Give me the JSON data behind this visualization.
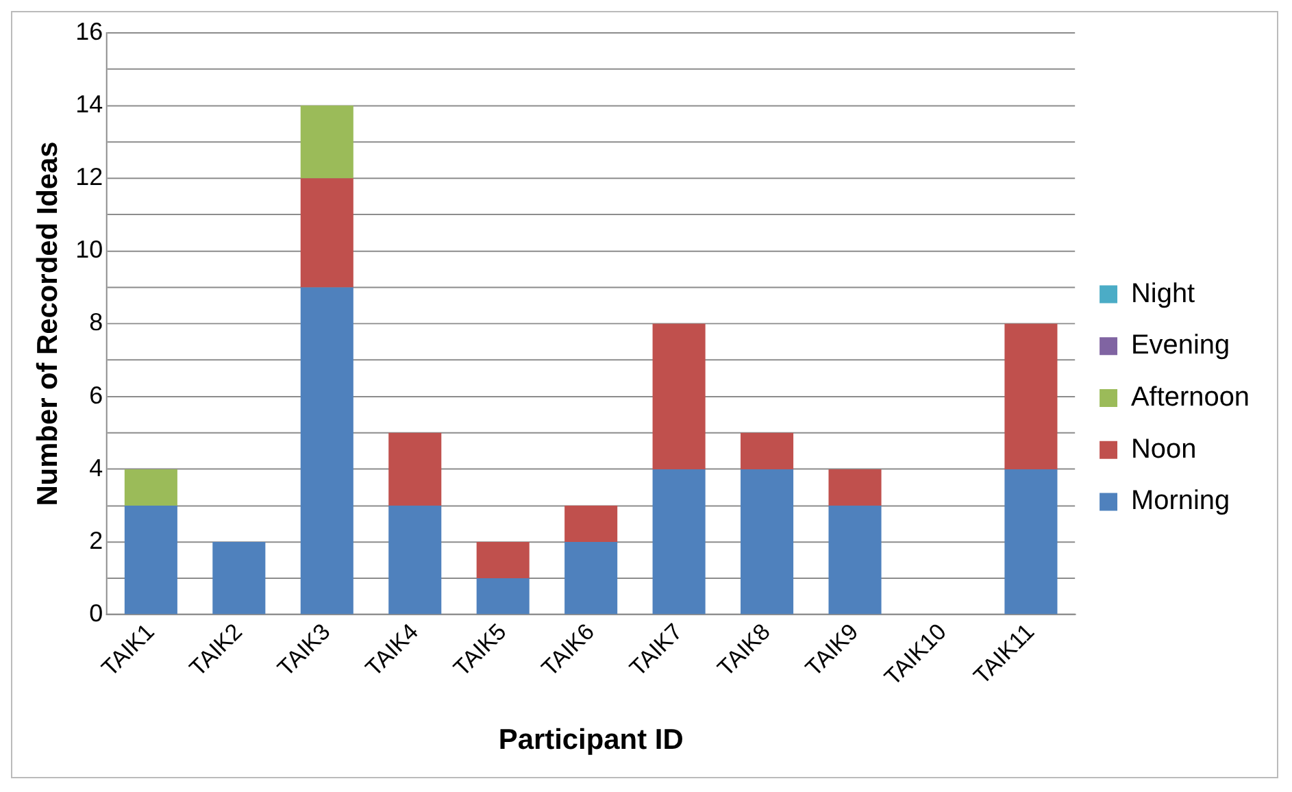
{
  "chart_data": {
    "type": "bar",
    "stacked": true,
    "xlabel": "Participant ID",
    "ylabel": "Number of Recorded Ideas",
    "categories": [
      "TAIK1",
      "TAIK2",
      "TAIK3",
      "TAIK4",
      "TAIK5",
      "TAIK6",
      "TAIK7",
      "TAIK8",
      "TAIK9",
      "TAIK10",
      "TAIK11"
    ],
    "series": [
      {
        "name": "Morning",
        "color": "#4f81bd",
        "values": [
          3,
          2,
          9,
          3,
          1,
          2,
          4,
          4,
          3,
          0,
          4
        ]
      },
      {
        "name": "Noon",
        "color": "#c0504d",
        "values": [
          0,
          0,
          3,
          2,
          1,
          1,
          4,
          1,
          1,
          0,
          4
        ]
      },
      {
        "name": "Afternoon",
        "color": "#9bbb59",
        "values": [
          1,
          0,
          2,
          0,
          0,
          0,
          0,
          0,
          0,
          0,
          0
        ]
      },
      {
        "name": "Evening",
        "color": "#8064a2",
        "values": [
          0,
          0,
          0,
          0,
          0,
          0,
          0,
          0,
          0,
          0,
          0
        ]
      },
      {
        "name": "Night",
        "color": "#4bacc6",
        "values": [
          0,
          0,
          0,
          0,
          0,
          0,
          0,
          0,
          0,
          0,
          0
        ]
      }
    ],
    "ylim": [
      0,
      16
    ],
    "yticks": [
      0,
      {
        "value": 1,
        "label": null
      },
      2,
      {
        "value": 3,
        "label": null
      },
      4,
      {
        "value": 5,
        "label": null
      },
      6,
      {
        "value": 7,
        "label": null
      },
      8,
      {
        "value": 9,
        "label": null
      },
      10,
      {
        "value": 11,
        "label": null
      },
      12,
      {
        "value": 13,
        "label": null
      },
      14,
      {
        "value": 15,
        "label": null
      },
      16
    ],
    "grid": "y",
    "legend": "right"
  }
}
